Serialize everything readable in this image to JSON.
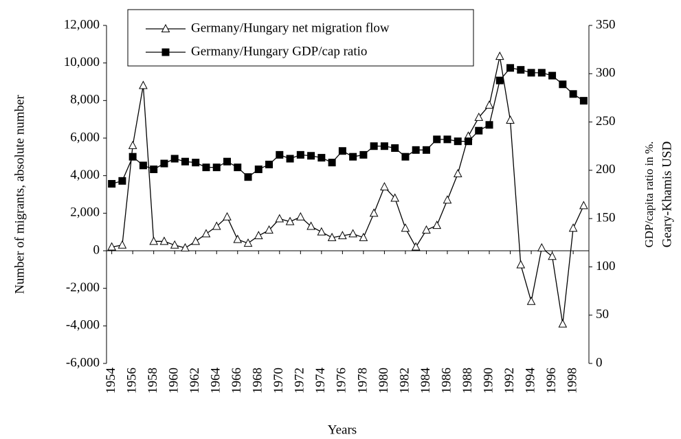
{
  "chart_data": {
    "type": "line",
    "x": [
      1954,
      1955,
      1956,
      1957,
      1958,
      1959,
      1960,
      1961,
      1962,
      1963,
      1964,
      1965,
      1966,
      1967,
      1968,
      1969,
      1970,
      1971,
      1972,
      1973,
      1974,
      1975,
      1976,
      1977,
      1978,
      1979,
      1980,
      1981,
      1982,
      1983,
      1984,
      1985,
      1986,
      1987,
      1988,
      1989,
      1990,
      1991,
      1992,
      1993,
      1994,
      1995,
      1996,
      1997,
      1998,
      1999
    ],
    "series": [
      {
        "name": "Germany/Hungary net migration flow",
        "color": "#000000",
        "marker": "triangle",
        "axis": "y",
        "values": [
          200,
          300,
          5600,
          8800,
          500,
          500,
          300,
          150,
          500,
          900,
          1300,
          1800,
          600,
          400,
          800,
          1100,
          1700,
          1550,
          1800,
          1300,
          1000,
          700,
          800,
          900,
          700,
          2000,
          3400,
          2800,
          1200,
          200,
          1100,
          1350,
          2700,
          4100,
          6100,
          7100,
          7750,
          10350,
          6950,
          -750,
          -2700,
          150,
          -300,
          -3900,
          1200,
          2400
        ]
      },
      {
        "name": "Germany/Hungary GDP/cap ratio",
        "color": "#000000",
        "marker": "square",
        "axis": "y2",
        "values": [
          186,
          189,
          214,
          205,
          201,
          207,
          212,
          209,
          208,
          203,
          203,
          209,
          203,
          193,
          201,
          206,
          216,
          212,
          216,
          215,
          213,
          208,
          220,
          214,
          216,
          225,
          225,
          223,
          214,
          221,
          221,
          232,
          232,
          230,
          230,
          241,
          247,
          293,
          306,
          304,
          301,
          301,
          298,
          289,
          279,
          272
        ]
      }
    ],
    "xlabel": "Years",
    "ylabel": "Number of migrants, absolute number",
    "y2label": [
      "GDP/capita ratio in %.",
      "Geary-Khamis USD"
    ],
    "xlim": [
      1953.5,
      1999.5
    ],
    "xticks": [
      1954,
      1956,
      1958,
      1960,
      1962,
      1964,
      1966,
      1968,
      1970,
      1972,
      1974,
      1976,
      1978,
      1980,
      1982,
      1984,
      1986,
      1988,
      1990,
      1992,
      1994,
      1996,
      1998
    ],
    "ylim": [
      -6000,
      12000
    ],
    "yticks": [
      {
        "value": -6000,
        "label": "-6,000"
      },
      {
        "value": -4000,
        "label": "-4,000"
      },
      {
        "value": -2000,
        "label": "-2,000"
      },
      0,
      {
        "value": 2000,
        "label": "2,000"
      },
      {
        "value": 4000,
        "label": "4,000"
      },
      {
        "value": 6000,
        "label": "6,000"
      },
      {
        "value": 8000,
        "label": "8,000"
      },
      {
        "value": 10000,
        "label": "10,000"
      },
      {
        "value": 12000,
        "label": "12,000"
      }
    ],
    "y2lim": [
      0,
      350
    ],
    "y2ticks": [
      0,
      50,
      100,
      150,
      200,
      250,
      300,
      350
    ],
    "grid": false
  }
}
